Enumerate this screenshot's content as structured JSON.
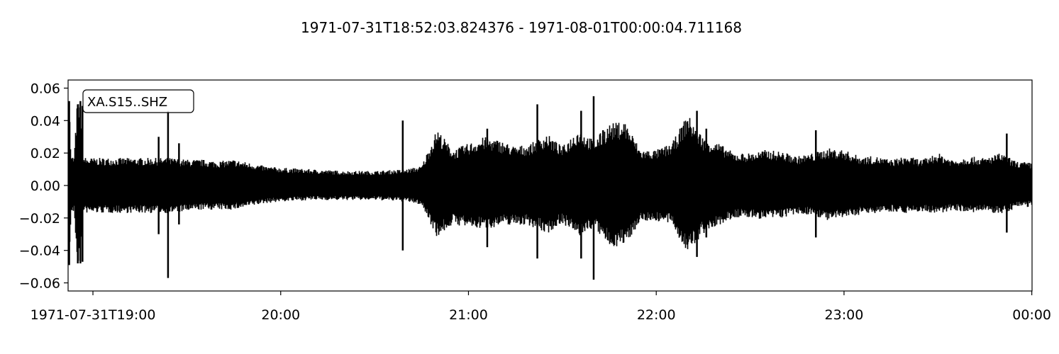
{
  "chart_data": {
    "type": "line",
    "title": "1971-07-31T18:52:03.824376  -  1971-08-01T00:00:04.711168",
    "trace_label": "XA.S15..SHZ",
    "xlabel": "",
    "ylabel": "",
    "x_range": [
      "1971-07-31T18:52:03.824376",
      "1971-08-01T00:00:04.711168"
    ],
    "ylim": [
      -0.065,
      0.065
    ],
    "y_ticks": [
      {
        "value": 0.06,
        "label": "0.06"
      },
      {
        "value": 0.04,
        "label": "0.04"
      },
      {
        "value": 0.02,
        "label": "0.02"
      },
      {
        "value": 0.0,
        "label": "0.00"
      },
      {
        "value": -0.02,
        "label": "−0.02"
      },
      {
        "value": -0.04,
        "label": "−0.04"
      },
      {
        "value": -0.06,
        "label": "−0.06"
      }
    ],
    "x_ticks": [
      {
        "time": "1971-07-31T19:00",
        "label": "1971-07-31T19:00"
      },
      {
        "time": "1971-07-31T20:00",
        "label": "20:00"
      },
      {
        "time": "1971-07-31T21:00",
        "label": "21:00"
      },
      {
        "time": "1971-07-31T22:00",
        "label": "22:00"
      },
      {
        "time": "1971-07-31T23:00",
        "label": "23:00"
      },
      {
        "time": "1971-08-01T00:00",
        "label": "00:00"
      }
    ],
    "series_color": "#000000",
    "envelope": {
      "times": [
        "18:52:04",
        "18:52:30",
        "18:53:00",
        "18:54:00",
        "18:55:00",
        "18:56:00",
        "18:57:00",
        "18:58:00",
        "18:59:00",
        "19:00:00",
        "19:05:00",
        "19:10:00",
        "19:15:00",
        "19:20:00",
        "19:25:00",
        "19:30:00",
        "19:35:00",
        "19:40:00",
        "19:45:00",
        "19:50:00",
        "19:55:00",
        "20:00:00",
        "20:10:00",
        "20:20:00",
        "20:30:00",
        "20:40:00",
        "20:45:00",
        "20:50:00",
        "20:55:00",
        "21:00:00",
        "21:05:00",
        "21:10:00",
        "21:15:00",
        "21:20:00",
        "21:25:00",
        "21:30:00",
        "21:35:00",
        "21:40:00",
        "21:45:00",
        "21:50:00",
        "21:55:00",
        "22:00:00",
        "22:05:00",
        "22:10:00",
        "22:15:00",
        "22:20:00",
        "22:25:00",
        "22:30:00",
        "22:35:00",
        "22:40:00",
        "22:45:00",
        "22:50:00",
        "22:55:00",
        "23:00:00",
        "23:05:00",
        "23:10:00",
        "23:15:00",
        "23:20:00",
        "23:25:00",
        "23:30:00",
        "23:35:00",
        "23:40:00",
        "23:45:00",
        "23:50:00",
        "23:55:00",
        "00:00:04"
      ],
      "max": [
        0.018,
        0.051,
        0.018,
        0.018,
        0.052,
        0.05,
        0.018,
        0.017,
        0.017,
        0.017,
        0.017,
        0.017,
        0.017,
        0.017,
        0.017,
        0.016,
        0.016,
        0.015,
        0.016,
        0.014,
        0.012,
        0.011,
        0.01,
        0.009,
        0.009,
        0.01,
        0.012,
        0.035,
        0.022,
        0.026,
        0.03,
        0.028,
        0.024,
        0.026,
        0.032,
        0.024,
        0.035,
        0.028,
        0.038,
        0.04,
        0.022,
        0.022,
        0.026,
        0.044,
        0.03,
        0.026,
        0.02,
        0.02,
        0.022,
        0.021,
        0.018,
        0.02,
        0.023,
        0.022,
        0.018,
        0.018,
        0.016,
        0.018,
        0.016,
        0.02,
        0.016,
        0.018,
        0.017,
        0.02,
        0.015,
        0.014
      ],
      "min": [
        -0.017,
        -0.048,
        -0.017,
        -0.017,
        -0.048,
        -0.047,
        -0.017,
        -0.017,
        -0.017,
        -0.017,
        -0.017,
        -0.017,
        -0.017,
        -0.017,
        -0.017,
        -0.016,
        -0.015,
        -0.015,
        -0.015,
        -0.013,
        -0.011,
        -0.01,
        -0.009,
        -0.009,
        -0.009,
        -0.01,
        -0.012,
        -0.032,
        -0.024,
        -0.026,
        -0.027,
        -0.025,
        -0.024,
        -0.025,
        -0.03,
        -0.023,
        -0.032,
        -0.026,
        -0.038,
        -0.037,
        -0.022,
        -0.022,
        -0.024,
        -0.042,
        -0.03,
        -0.025,
        -0.02,
        -0.02,
        -0.021,
        -0.02,
        -0.018,
        -0.018,
        -0.022,
        -0.02,
        -0.018,
        -0.017,
        -0.016,
        -0.017,
        -0.016,
        -0.018,
        -0.015,
        -0.017,
        -0.016,
        -0.018,
        -0.014,
        -0.013
      ]
    },
    "spikes": [
      {
        "time": "18:52:25",
        "max": 0.052,
        "min": -0.049
      },
      {
        "time": "18:55:10",
        "max": 0.05,
        "min": -0.048
      },
      {
        "time": "18:56:00",
        "max": 0.052,
        "min": -0.048
      },
      {
        "time": "18:56:40",
        "max": 0.049,
        "min": -0.047
      },
      {
        "time": "19:21:00",
        "max": 0.03,
        "min": -0.03
      },
      {
        "time": "19:24:00",
        "max": 0.046,
        "min": -0.057
      },
      {
        "time": "19:27:30",
        "max": 0.026,
        "min": -0.024
      },
      {
        "time": "20:39:00",
        "max": 0.04,
        "min": -0.04
      },
      {
        "time": "21:06:00",
        "max": 0.035,
        "min": -0.038
      },
      {
        "time": "21:22:00",
        "max": 0.05,
        "min": -0.045
      },
      {
        "time": "21:36:00",
        "max": 0.046,
        "min": -0.045
      },
      {
        "time": "21:40:00",
        "max": 0.055,
        "min": -0.058
      },
      {
        "time": "21:43:00",
        "max": 0.034,
        "min": -0.026
      },
      {
        "time": "22:10:00",
        "max": 0.038,
        "min": -0.036
      },
      {
        "time": "22:13:00",
        "max": 0.046,
        "min": -0.044
      },
      {
        "time": "22:16:00",
        "max": 0.035,
        "min": -0.032
      },
      {
        "time": "22:51:00",
        "max": 0.034,
        "min": -0.032
      },
      {
        "time": "23:52:00",
        "max": 0.032,
        "min": -0.029
      }
    ]
  }
}
